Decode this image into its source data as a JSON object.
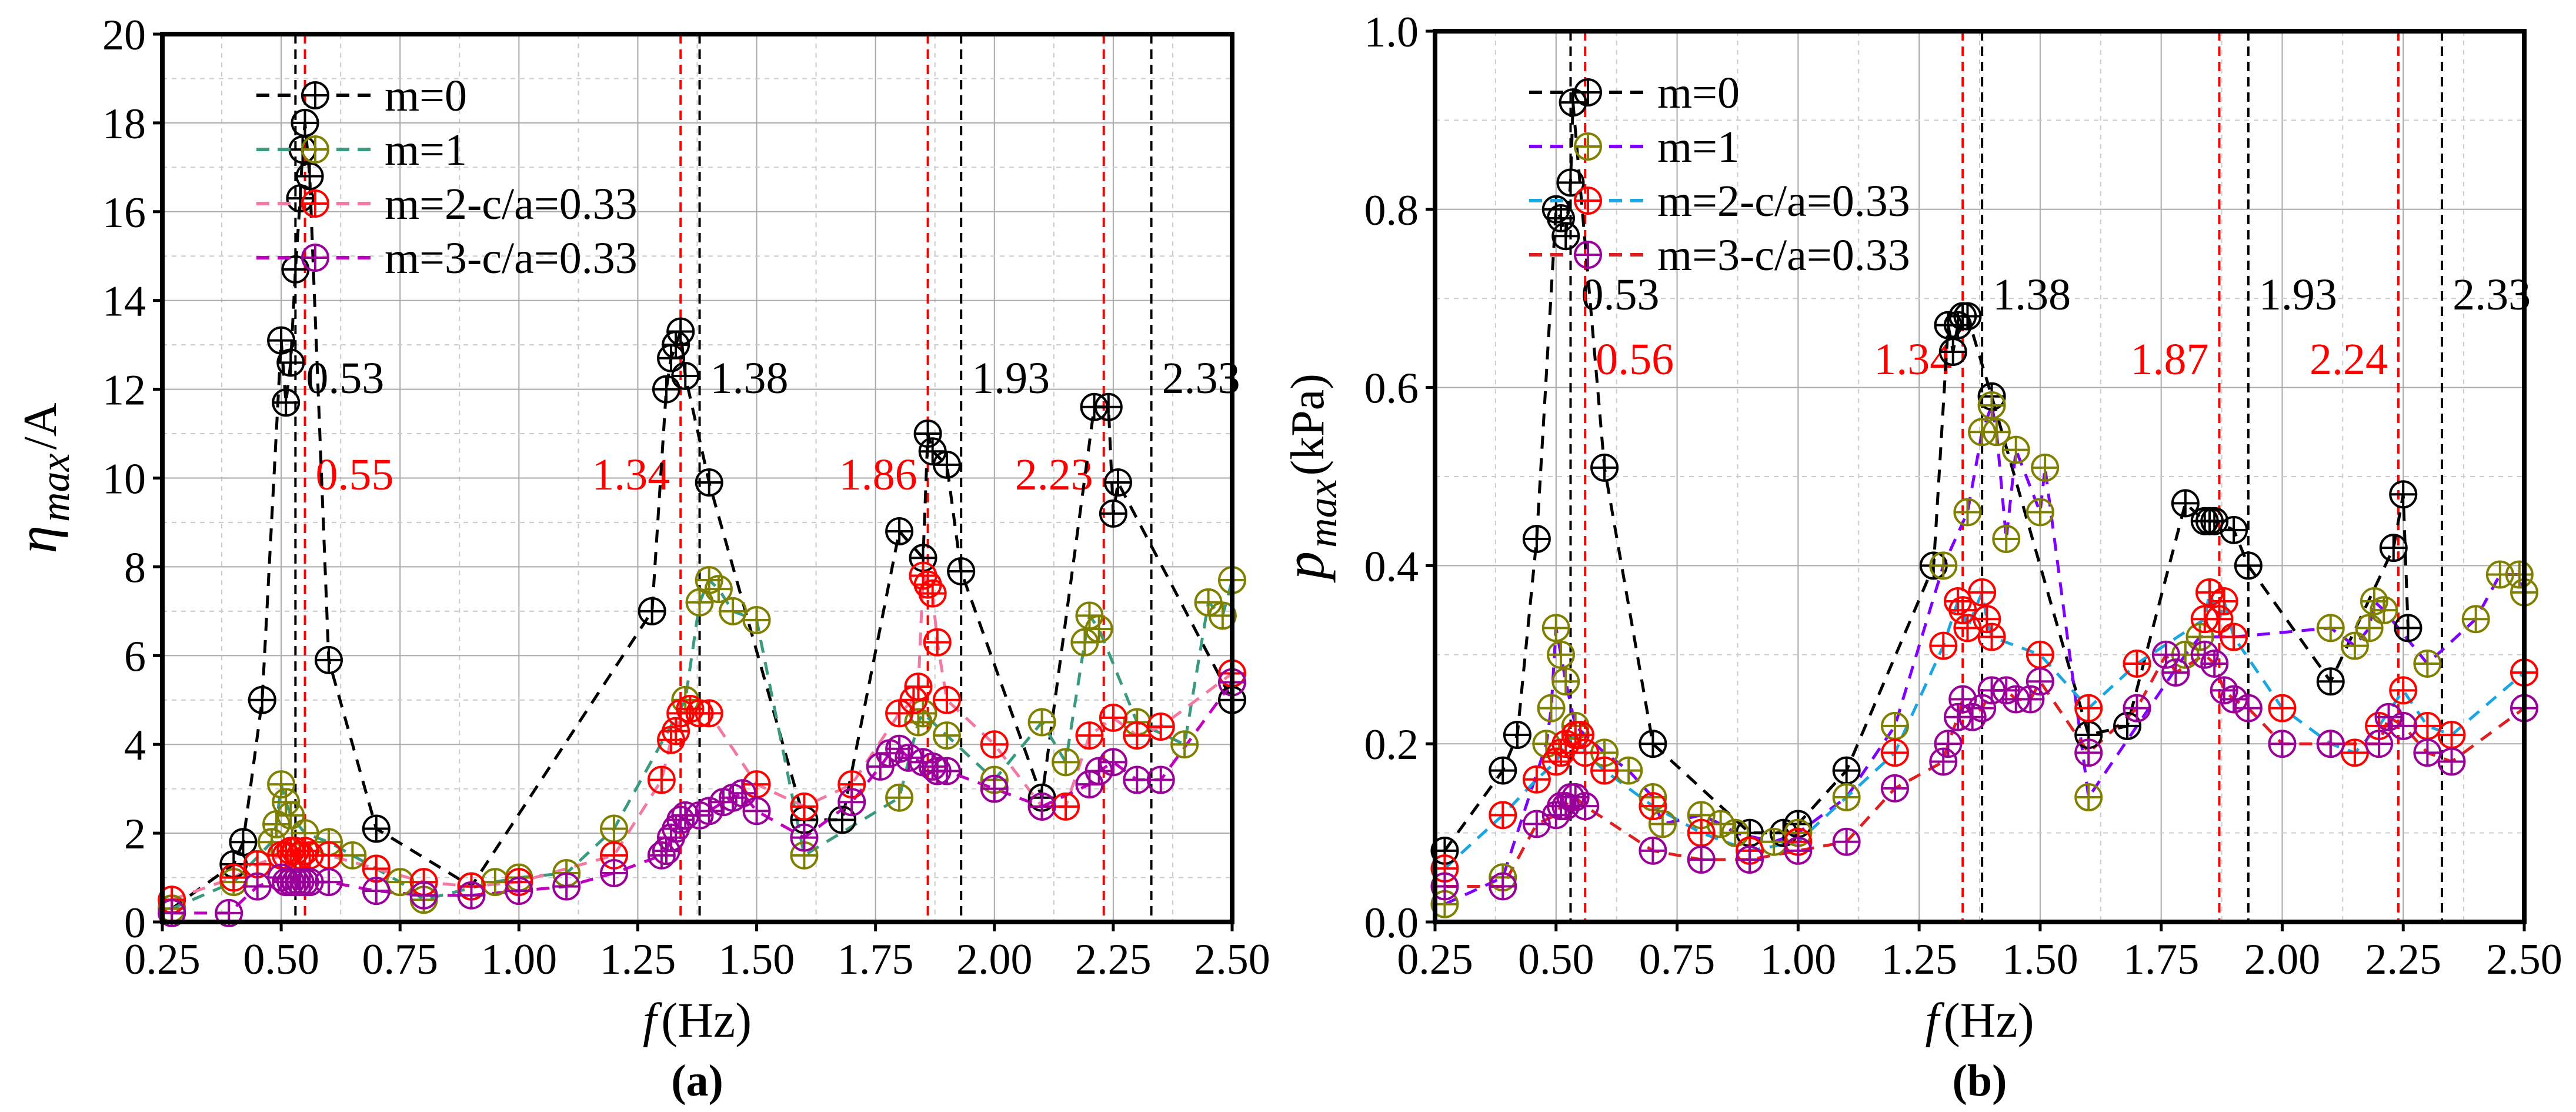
{
  "chart_data": [
    {
      "type": "scatter",
      "panel_label": "(a)",
      "panel_letter": "a",
      "ylabel_main": "η",
      "ylabel_sub": "max",
      "ylabel_tail": " /A",
      "xlabel_italic": "f",
      "xlabel_unit": " (Hz)",
      "xlim": [
        0.25,
        2.5
      ],
      "ylim": [
        0,
        20
      ],
      "xticks": [
        "0.25",
        "0.50",
        "0.75",
        "1.00",
        "1.25",
        "1.50",
        "1.75",
        "2.00",
        "2.25",
        "2.50"
      ],
      "yticks": [
        "0",
        "2",
        "4",
        "6",
        "8",
        "10",
        "12",
        "14",
        "16",
        "18",
        "20"
      ],
      "grid": true,
      "legend_position": "top-left",
      "vlines": [
        {
          "x": 0.53,
          "label": "0.53",
          "color": "#000000"
        },
        {
          "x": 1.38,
          "label": "1.38",
          "color": "#000000"
        },
        {
          "x": 1.93,
          "label": "1.93",
          "color": "#000000"
        },
        {
          "x": 2.33,
          "label": "2.33",
          "color": "#000000"
        },
        {
          "x": 0.55,
          "label": "0.55",
          "color": "#ff0000"
        },
        {
          "x": 1.34,
          "label": "1.34",
          "color": "#ff0000"
        },
        {
          "x": 1.86,
          "label": "1.86",
          "color": "#ff0000"
        },
        {
          "x": 2.23,
          "label": "2.23",
          "color": "#ff0000"
        }
      ],
      "series": [
        {
          "name": "m=0",
          "marker_color": "#000000",
          "line_color": "#000000",
          "x": [
            0.27,
            0.4,
            0.42,
            0.46,
            0.5,
            0.51,
            0.52,
            0.53,
            0.54,
            0.545,
            0.55,
            0.56,
            0.6,
            0.7,
            0.9,
            1.28,
            1.31,
            1.32,
            1.33,
            1.34,
            1.35,
            1.4,
            1.6,
            1.68,
            1.8,
            1.85,
            1.86,
            1.87,
            1.9,
            1.93,
            2.1,
            2.21,
            2.24,
            2.25,
            2.26,
            2.5
          ],
          "y": [
            0.3,
            1.3,
            1.8,
            5.0,
            13.1,
            11.7,
            12.6,
            14.7,
            16.3,
            17.4,
            18.0,
            16.8,
            5.9,
            2.1,
            0.8,
            7.0,
            12.0,
            12.7,
            13.0,
            13.3,
            12.3,
            9.9,
            2.3,
            2.3,
            8.8,
            8.2,
            11.0,
            10.6,
            10.3,
            7.9,
            2.8,
            11.6,
            11.6,
            9.2,
            9.9,
            5.0
          ]
        },
        {
          "name": "m=1",
          "marker_color": "#808000",
          "line_color": "#3a9a80",
          "x": [
            0.27,
            0.4,
            0.48,
            0.49,
            0.5,
            0.51,
            0.52,
            0.55,
            0.6,
            0.65,
            0.7,
            0.75,
            0.8,
            0.95,
            1.0,
            1.1,
            1.2,
            1.35,
            1.38,
            1.4,
            1.42,
            1.45,
            1.5,
            1.6,
            1.8,
            1.84,
            1.85,
            1.9,
            2.0,
            2.1,
            2.15,
            2.19,
            2.2,
            2.22,
            2.3,
            2.4,
            2.45,
            2.48,
            2.5
          ],
          "y": [
            0.3,
            0.9,
            1.8,
            2.2,
            3.1,
            2.7,
            2.4,
            2.0,
            1.8,
            1.5,
            1.2,
            0.9,
            0.5,
            0.9,
            1.0,
            1.1,
            2.1,
            5.0,
            7.2,
            7.7,
            7.5,
            7.0,
            6.8,
            1.5,
            2.8,
            4.5,
            4.7,
            4.2,
            3.2,
            4.5,
            3.6,
            6.3,
            6.9,
            6.6,
            4.5,
            4.0,
            7.2,
            6.9,
            7.7
          ]
        },
        {
          "name": "m=2-c/a=0.33",
          "marker_color": "#ff0000",
          "line_color": "#f27aa0",
          "x": [
            0.27,
            0.4,
            0.45,
            0.5,
            0.51,
            0.52,
            0.53,
            0.54,
            0.55,
            0.56,
            0.6,
            0.7,
            0.8,
            0.9,
            1.0,
            1.2,
            1.3,
            1.32,
            1.33,
            1.34,
            1.36,
            1.38,
            1.4,
            1.5,
            1.6,
            1.7,
            1.8,
            1.83,
            1.84,
            1.85,
            1.86,
            1.87,
            1.88,
            1.9,
            2.0,
            2.1,
            2.15,
            2.2,
            2.25,
            2.3,
            2.35,
            2.5
          ],
          "y": [
            0.5,
            1.0,
            1.3,
            1.5,
            1.5,
            1.6,
            1.6,
            1.5,
            1.6,
            1.5,
            1.5,
            1.2,
            0.9,
            0.8,
            0.9,
            1.5,
            3.2,
            4.1,
            4.3,
            4.7,
            4.8,
            4.7,
            4.7,
            3.1,
            2.6,
            3.1,
            4.7,
            5.0,
            5.3,
            7.8,
            7.6,
            7.4,
            6.3,
            5.0,
            4.0,
            2.6,
            2.6,
            4.2,
            4.6,
            4.2,
            4.4,
            5.6
          ]
        },
        {
          "name": "m=3-c/a=0.33",
          "marker_color": "#990099",
          "line_color": "#c000c0",
          "x": [
            0.27,
            0.39,
            0.45,
            0.5,
            0.51,
            0.52,
            0.53,
            0.54,
            0.55,
            0.56,
            0.6,
            0.7,
            0.8,
            0.9,
            1.0,
            1.1,
            1.2,
            1.3,
            1.31,
            1.32,
            1.33,
            1.34,
            1.35,
            1.38,
            1.4,
            1.43,
            1.45,
            1.47,
            1.5,
            1.6,
            1.7,
            1.76,
            1.78,
            1.8,
            1.82,
            1.85,
            1.87,
            1.88,
            1.9,
            2.0,
            2.1,
            2.2,
            2.22,
            2.25,
            2.3,
            2.35,
            2.5
          ],
          "y": [
            0.2,
            0.2,
            0.8,
            1.0,
            0.9,
            0.9,
            0.9,
            0.9,
            0.9,
            0.9,
            0.9,
            0.7,
            0.6,
            0.6,
            0.7,
            0.8,
            1.1,
            1.5,
            1.6,
            1.9,
            2.1,
            2.3,
            2.4,
            2.4,
            2.5,
            2.7,
            2.8,
            2.9,
            2.5,
            1.9,
            2.7,
            3.5,
            3.8,
            3.9,
            3.7,
            3.6,
            3.5,
            3.4,
            3.4,
            3.0,
            2.6,
            3.1,
            3.4,
            3.6,
            3.2,
            3.2,
            5.4
          ]
        }
      ]
    },
    {
      "type": "scatter",
      "panel_label": "(b)",
      "panel_letter": "b",
      "ylabel_main": "p",
      "ylabel_sub": "max",
      "ylabel_tail": " (kPa)",
      "xlabel_italic": "f",
      "xlabel_unit": " (Hz)",
      "xlim": [
        0.25,
        2.5
      ],
      "ylim": [
        0,
        1.0
      ],
      "xticks": [
        "0.25",
        "0.50",
        "0.75",
        "1.00",
        "1.25",
        "1.50",
        "1.75",
        "2.00",
        "2.25",
        "2.50"
      ],
      "yticks": [
        "0.0",
        "0.2",
        "0.4",
        "0.6",
        "0.8",
        "1.0"
      ],
      "grid": true,
      "legend_position": "top-left",
      "vlines": [
        {
          "x": 0.53,
          "label": "0.53",
          "color": "#000000"
        },
        {
          "x": 1.38,
          "label": "1.38",
          "color": "#000000"
        },
        {
          "x": 1.93,
          "label": "1.93",
          "color": "#000000"
        },
        {
          "x": 2.33,
          "label": "2.33",
          "color": "#000000"
        },
        {
          "x": 0.56,
          "label": "0.56",
          "color": "#ff0000"
        },
        {
          "x": 1.34,
          "label": "1.34",
          "color": "#ff0000"
        },
        {
          "x": 1.87,
          "label": "1.87",
          "color": "#ff0000"
        },
        {
          "x": 2.24,
          "label": "2.24",
          "color": "#ff0000"
        }
      ],
      "series": [
        {
          "name": "m=0",
          "marker_color": "#000000",
          "line_color": "#000000",
          "x": [
            0.27,
            0.39,
            0.42,
            0.46,
            0.5,
            0.51,
            0.52,
            0.53,
            0.535,
            0.6,
            0.7,
            0.9,
            0.97,
            1.0,
            1.1,
            1.28,
            1.31,
            1.32,
            1.33,
            1.34,
            1.35,
            1.4,
            1.6,
            1.68,
            1.8,
            1.84,
            1.85,
            1.86,
            1.9,
            1.93,
            2.1,
            2.23,
            2.25,
            2.26
          ],
          "y": [
            0.08,
            0.17,
            0.21,
            0.43,
            0.8,
            0.79,
            0.77,
            0.83,
            0.92,
            0.51,
            0.2,
            0.1,
            0.1,
            0.11,
            0.17,
            0.4,
            0.67,
            0.64,
            0.67,
            0.68,
            0.68,
            0.59,
            0.21,
            0.22,
            0.47,
            0.45,
            0.45,
            0.45,
            0.44,
            0.4,
            0.27,
            0.42,
            0.48,
            0.33
          ]
        },
        {
          "name": "m=1",
          "marker_color": "#808000",
          "line_color": "#8000ff",
          "x": [
            0.27,
            0.39,
            0.48,
            0.49,
            0.5,
            0.51,
            0.52,
            0.54,
            0.6,
            0.65,
            0.7,
            0.72,
            0.8,
            0.84,
            0.87,
            0.95,
            1.0,
            1.1,
            1.2,
            1.3,
            1.35,
            1.38,
            1.4,
            1.41,
            1.43,
            1.45,
            1.5,
            1.51,
            1.6,
            1.8,
            1.83,
            1.9,
            2.1,
            2.15,
            2.18,
            2.19,
            2.21,
            2.3,
            2.4,
            2.45,
            2.49,
            2.5
          ],
          "y": [
            0.02,
            0.05,
            0.2,
            0.24,
            0.33,
            0.3,
            0.27,
            0.22,
            0.19,
            0.17,
            0.14,
            0.11,
            0.12,
            0.11,
            0.1,
            0.09,
            0.1,
            0.14,
            0.22,
            0.4,
            0.46,
            0.55,
            0.58,
            0.55,
            0.43,
            0.53,
            0.46,
            0.51,
            0.14,
            0.3,
            0.32,
            0.32,
            0.33,
            0.31,
            0.33,
            0.36,
            0.35,
            0.29,
            0.34,
            0.39,
            0.39,
            0.37
          ]
        },
        {
          "name": "m=2-c/a=0.33",
          "marker_color": "#ff0000",
          "line_color": "#1aa6e0",
          "x": [
            0.27,
            0.39,
            0.46,
            0.5,
            0.51,
            0.52,
            0.54,
            0.55,
            0.56,
            0.6,
            0.7,
            0.8,
            0.9,
            1.0,
            1.2,
            1.3,
            1.33,
            1.34,
            1.35,
            1.38,
            1.39,
            1.4,
            1.5,
            1.6,
            1.7,
            1.84,
            1.85,
            1.87,
            1.88,
            1.9,
            2.0,
            2.1,
            2.15,
            2.2,
            2.25,
            2.3,
            2.35,
            2.5
          ],
          "y": [
            0.06,
            0.12,
            0.16,
            0.18,
            0.19,
            0.2,
            0.21,
            0.21,
            0.19,
            0.17,
            0.13,
            0.1,
            0.08,
            0.09,
            0.19,
            0.31,
            0.36,
            0.35,
            0.33,
            0.37,
            0.34,
            0.32,
            0.3,
            0.24,
            0.29,
            0.34,
            0.37,
            0.34,
            0.36,
            0.32,
            0.24,
            0.2,
            0.19,
            0.22,
            0.26,
            0.22,
            0.21,
            0.28
          ]
        },
        {
          "name": "m=3-c/a=0.33",
          "marker_color": "#990099",
          "line_color": "#e02020",
          "x": [
            0.27,
            0.39,
            0.46,
            0.5,
            0.51,
            0.52,
            0.53,
            0.54,
            0.56,
            0.7,
            0.8,
            0.9,
            1.0,
            1.1,
            1.2,
            1.3,
            1.31,
            1.33,
            1.34,
            1.36,
            1.38,
            1.4,
            1.43,
            1.45,
            1.48,
            1.5,
            1.6,
            1.7,
            1.76,
            1.78,
            1.84,
            1.86,
            1.88,
            1.9,
            1.93,
            2.0,
            2.1,
            2.2,
            2.22,
            2.25,
            2.3,
            2.35,
            2.5
          ],
          "y": [
            0.04,
            0.04,
            0.11,
            0.12,
            0.13,
            0.13,
            0.14,
            0.14,
            0.13,
            0.08,
            0.07,
            0.07,
            0.08,
            0.09,
            0.15,
            0.18,
            0.2,
            0.23,
            0.25,
            0.23,
            0.24,
            0.26,
            0.26,
            0.25,
            0.25,
            0.27,
            0.19,
            0.24,
            0.3,
            0.28,
            0.3,
            0.29,
            0.26,
            0.25,
            0.24,
            0.2,
            0.2,
            0.2,
            0.23,
            0.22,
            0.19,
            0.18,
            0.24
          ]
        }
      ]
    }
  ]
}
